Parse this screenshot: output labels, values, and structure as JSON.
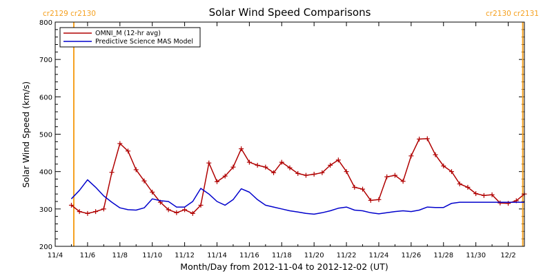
{
  "chart_data": {
    "type": "line",
    "title": "Solar Wind Speed Comparisons",
    "xlabel": "Month/Day from 2012-11-04 to 2012-12-02 (UT)",
    "ylabel": "Solar Wind Speed (km/s)",
    "xlim": [
      0,
      29
    ],
    "ylim": [
      200,
      800
    ],
    "xtick_values": [
      0,
      2,
      4,
      6,
      8,
      10,
      12,
      14,
      16,
      18,
      20,
      22,
      24,
      26,
      28
    ],
    "xtick_labels": [
      "11/4",
      "11/6",
      "11/8",
      "11/10",
      "11/12",
      "11/14",
      "11/16",
      "11/18",
      "11/20",
      "11/22",
      "11/24",
      "11/26",
      "11/28",
      "11/30",
      "12/2"
    ],
    "ytick_values": [
      200,
      300,
      400,
      500,
      600,
      700,
      800
    ],
    "legend_position": "top-left",
    "grid": false,
    "series": [
      {
        "name": "OMNI_M (12-hr avg)",
        "color": "#b00000",
        "markers": "plus",
        "x": [
          1.0,
          1.5,
          2.0,
          2.5,
          3.0,
          3.5,
          4.0,
          4.5,
          5.0,
          5.5,
          6.0,
          6.5,
          7.0,
          7.5,
          8.0,
          8.5,
          9.0,
          9.5,
          10.0,
          10.5,
          11.0,
          11.5,
          12.0,
          12.5,
          13.0,
          13.5,
          14.0,
          14.5,
          15.0,
          15.5,
          16.0,
          16.5,
          17.0,
          17.5,
          18.0,
          18.5,
          19.0,
          19.5,
          20.0,
          20.5,
          21.0,
          21.5,
          22.0,
          22.5,
          23.0,
          23.5,
          24.0,
          24.5,
          25.0,
          25.5,
          26.0,
          26.5,
          27.0,
          27.5,
          28.0,
          28.5,
          29.0
        ],
        "y": [
          310,
          293,
          288,
          293,
          300,
          398,
          475,
          455,
          405,
          375,
          345,
          318,
          298,
          290,
          298,
          288,
          310,
          423,
          373,
          388,
          412,
          461,
          425,
          417,
          412,
          397,
          425,
          410,
          395,
          390,
          393,
          397,
          417,
          431,
          400,
          358,
          353,
          323,
          325,
          386,
          390,
          374,
          442,
          487,
          488,
          445,
          415,
          400,
          367,
          358,
          341,
          336,
          338,
          316,
          315,
          322,
          340
        ]
      },
      {
        "name": "Predictive Science MAS Model",
        "color": "#0000cc",
        "markers": "none",
        "x": [
          1.0,
          1.5,
          2.0,
          2.5,
          3.0,
          3.5,
          4.0,
          4.5,
          5.0,
          5.5,
          6.0,
          6.5,
          7.0,
          7.5,
          8.0,
          8.5,
          9.0,
          9.5,
          10.0,
          10.5,
          11.0,
          11.5,
          12.0,
          12.5,
          13.0,
          13.5,
          14.0,
          14.5,
          15.0,
          15.5,
          16.0,
          16.5,
          17.0,
          17.5,
          18.0,
          18.5,
          19.0,
          19.5,
          20.0,
          20.5,
          21.0,
          21.5,
          22.0,
          22.5,
          23.0,
          23.5,
          24.0,
          24.5,
          25.0,
          25.5,
          26.0,
          26.5,
          27.0,
          27.5,
          28.0,
          28.5,
          29.0
        ],
        "y": [
          327,
          350,
          378,
          358,
          335,
          318,
          303,
          298,
          297,
          303,
          327,
          322,
          320,
          305,
          305,
          320,
          355,
          340,
          320,
          310,
          325,
          354,
          345,
          325,
          310,
          305,
          300,
          295,
          292,
          288,
          286,
          290,
          295,
          302,
          305,
          297,
          295,
          290,
          287,
          290,
          293,
          295,
          293,
          297,
          305,
          304,
          304,
          315,
          318,
          318,
          318,
          318,
          318,
          318,
          318,
          318,
          318
        ]
      }
    ],
    "vertical_markers": [
      {
        "x": 1.15,
        "color": "#f5a01e",
        "label": "cr2129 cr2130"
      },
      {
        "x": 28.9,
        "color": "#f5a01e",
        "label": "cr2130 cr2131"
      }
    ]
  }
}
